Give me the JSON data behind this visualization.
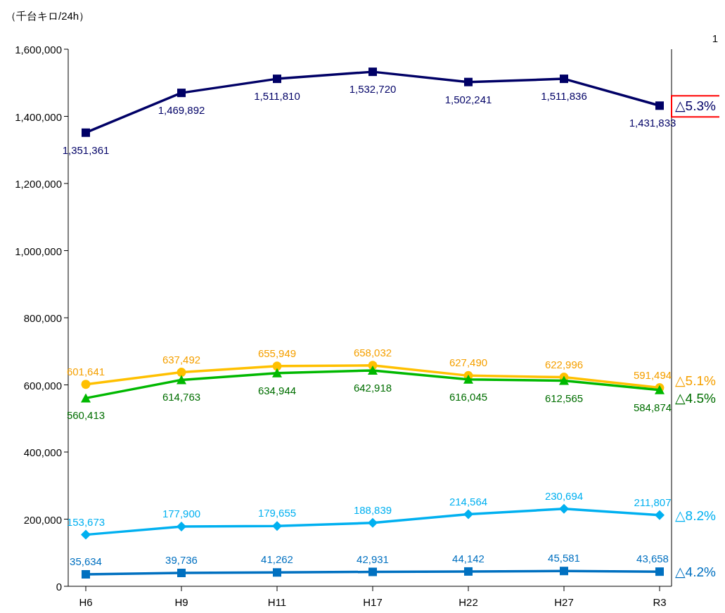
{
  "chart_data": {
    "type": "line",
    "ylabel": "（千台キロ/24h）",
    "categories": [
      "H6",
      "H9",
      "H11",
      "H17",
      "H22",
      "H27",
      "R3"
    ],
    "ylim": [
      0,
      1600000
    ],
    "yticks": [
      {
        "value": 0,
        "label": "0"
      },
      {
        "value": 200000,
        "label": "200,000"
      },
      {
        "value": 400000,
        "label": "400,000"
      },
      {
        "value": 600000,
        "label": "600,000"
      },
      {
        "value": 800000,
        "label": "800,000"
      },
      {
        "value": 1000000,
        "label": "1,000,000"
      },
      {
        "value": 1200000,
        "label": "1,200,000"
      },
      {
        "value": 1400000,
        "label": "1,400,000"
      },
      {
        "value": 1600000,
        "label": "1,600,000"
      }
    ],
    "grid": false,
    "line_style": "solid",
    "series": [
      {
        "color": "#000066",
        "marker": "square",
        "values": [
          1351361,
          1469892,
          1511810,
          1532720,
          1502241,
          1511836,
          1431833
        ],
        "value_labels": [
          "1,351,361",
          "1,469,892",
          "1,511,810",
          "1,532,720",
          "1,502,241",
          "1,511,836",
          "1,431,833"
        ]
      },
      {
        "color": "#ffc000",
        "marker": "circle",
        "values": [
          601641,
          637492,
          655949,
          658032,
          627490,
          622996,
          591494
        ],
        "value_labels": [
          "601,641",
          "637,492",
          "655,949",
          "658,032",
          "627,490",
          "622,996",
          "591,494"
        ]
      },
      {
        "color": "#00b800",
        "marker": "triangle",
        "values": [
          560413,
          614763,
          634944,
          642918,
          616045,
          612565,
          584874
        ],
        "value_labels": [
          "560,413",
          "614,763",
          "634,944",
          "642,918",
          "616,045",
          "612,565",
          "584,874"
        ]
      },
      {
        "color": "#00b0f0",
        "marker": "diamond",
        "values": [
          153673,
          177900,
          179655,
          188839,
          214564,
          230694,
          211807
        ],
        "value_labels": [
          "153,673",
          "177,900",
          "179,655",
          "188,839",
          "214,564",
          "230,694",
          "211,807"
        ]
      },
      {
        "color": "#0070c0",
        "marker": "square",
        "values": [
          35634,
          39736,
          41262,
          42931,
          44142,
          45581,
          43658
        ],
        "value_labels": [
          "35,634",
          "39,736",
          "41,262",
          "42,931",
          "44,142",
          "45,581",
          "43,658"
        ]
      }
    ],
    "annotations": [
      {
        "text": "△5.3%",
        "x": "R3",
        "y": 1431833
      },
      {
        "text": "△5.1%",
        "x": "R3",
        "y": 591494
      },
      {
        "text": "△4.5%",
        "x": "R3",
        "y": 584874
      },
      {
        "text": "△8.2%",
        "x": "R3",
        "y": 211807
      },
      {
        "text": "△4.2%",
        "x": "R3",
        "y": 43658
      },
      "1"
    ]
  }
}
